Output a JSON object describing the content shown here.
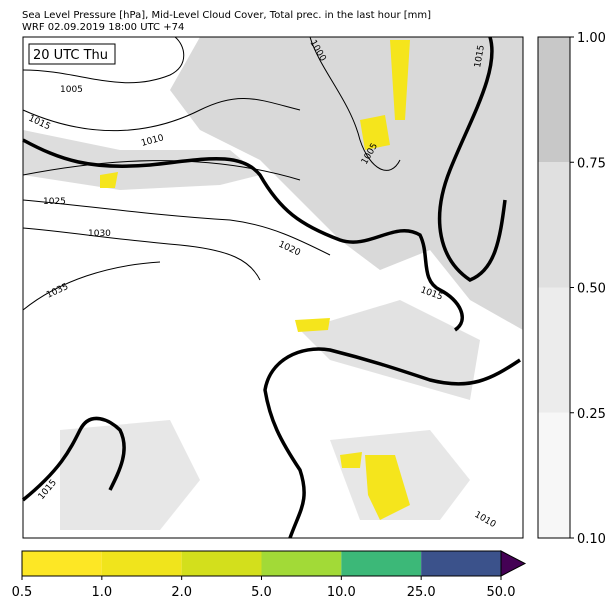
{
  "header": {
    "title": [
      "Sea Level Pressure [hPa], Mid-Level Cloud Cover, Total prec. in the last hour [mm]",
      "WRF 02.09.2019 18:00 UTC +74"
    ]
  },
  "map": {
    "time_label": "20 UTC Thu",
    "contour_labels": [
      "1005",
      "1015",
      "1010",
      "1025",
      "1030",
      "1035",
      "1020",
      "1000",
      "1005",
      "1015",
      "1015",
      "1015",
      "1010"
    ]
  },
  "cloud_colorbar": {
    "ticks": [
      "1.00",
      "0.75",
      "0.50",
      "0.25",
      "0.10"
    ],
    "colors": [
      "#c8c8c8",
      "#e0e0e0",
      "#ececec",
      "#f7f7f7"
    ]
  },
  "precip_colorbar": {
    "ticks": [
      "0.5",
      "1.0",
      "2.0",
      "5.0",
      "10.0",
      "25.0",
      "50.0"
    ],
    "colors": [
      "#fde725",
      "#f0e41c",
      "#d3df1c",
      "#a2da37",
      "#3cb878",
      "#3b528b"
    ],
    "over_color": "#440154"
  }
}
